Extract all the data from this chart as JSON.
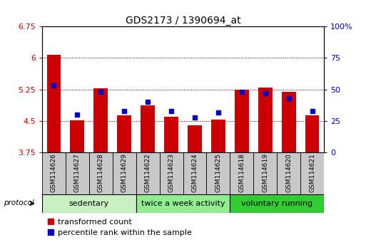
{
  "title": "GDS2173 / 1390694_at",
  "samples": [
    "GSM114626",
    "GSM114627",
    "GSM114628",
    "GSM114629",
    "GSM114622",
    "GSM114623",
    "GSM114624",
    "GSM114625",
    "GSM114618",
    "GSM114619",
    "GSM114620",
    "GSM114621"
  ],
  "transformed_count": [
    6.07,
    4.52,
    5.27,
    4.63,
    4.88,
    4.6,
    4.4,
    4.53,
    5.25,
    5.29,
    5.19,
    4.63
  ],
  "percentile_rank": [
    53,
    30,
    48,
    33,
    40,
    33,
    28,
    32,
    48,
    47,
    43,
    33
  ],
  "groups": [
    {
      "label": "sedentary",
      "indices": [
        0,
        1,
        2,
        3
      ],
      "color": "#c8f0c0"
    },
    {
      "label": "twice a week activity",
      "indices": [
        4,
        5,
        6,
        7
      ],
      "color": "#90ee90"
    },
    {
      "label": "voluntary running",
      "indices": [
        8,
        9,
        10,
        11
      ],
      "color": "#32cd32"
    }
  ],
  "ylim_left": [
    3.75,
    6.75
  ],
  "ylim_right": [
    0,
    100
  ],
  "yticks_left": [
    3.75,
    4.5,
    5.25,
    6.0,
    6.75
  ],
  "ytick_labels_left": [
    "3.75",
    "4.5",
    "5.25",
    "6",
    "6.75"
  ],
  "yticks_right": [
    0,
    25,
    50,
    75,
    100
  ],
  "ytick_labels_right": [
    "0",
    "25",
    "50",
    "75",
    "100%"
  ],
  "bar_color": "#cc0000",
  "dot_color": "#0000cc",
  "bar_width": 0.6,
  "base_value": 3.75,
  "protocol_label": "protocol",
  "legend": [
    "transformed count",
    "percentile rank within the sample"
  ],
  "tick_label_color_left": "#cc0000",
  "tick_label_color_right": "#0000cc",
  "label_box_color": "#c8c8c8"
}
